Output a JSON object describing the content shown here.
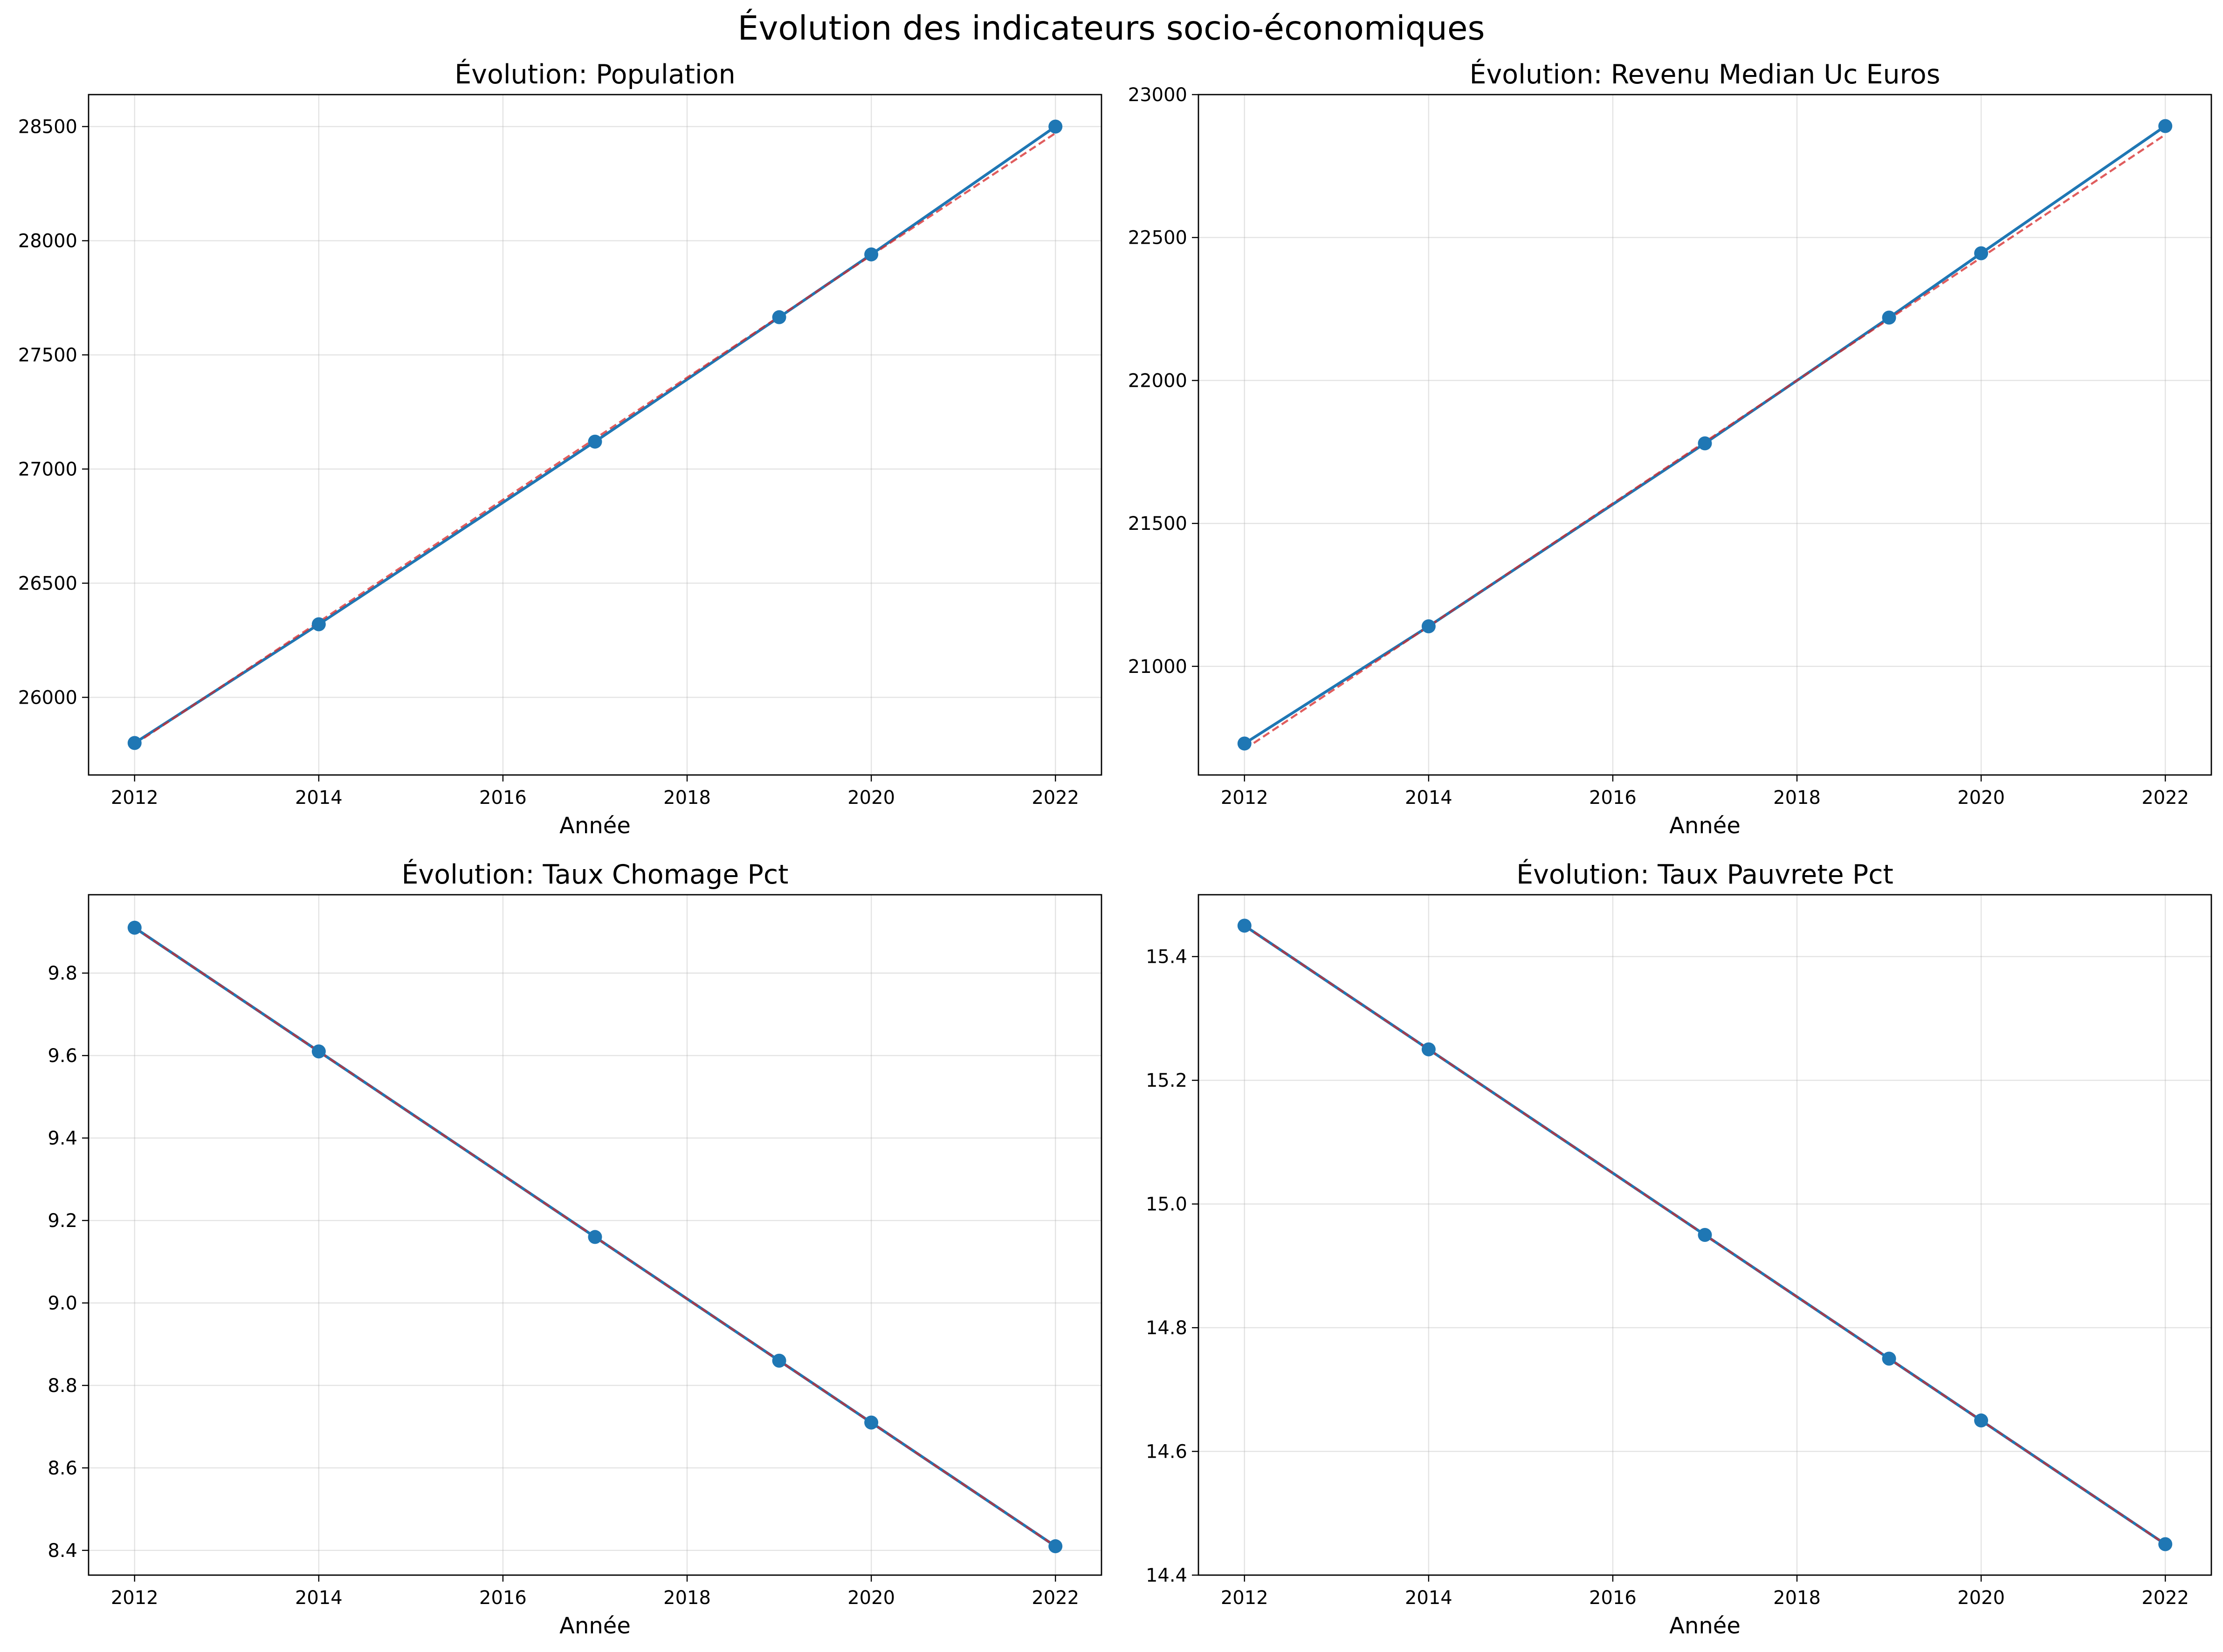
{
  "figure": {
    "title": "Évolution des indicateurs socio-économiques"
  },
  "colors": {
    "series_line": "#1f77b4",
    "trend_line": "#d62728",
    "grid": "#b0b0b0"
  },
  "chart_data": [
    {
      "type": "line",
      "title": "Évolution: Population",
      "xlabel": "Année",
      "ylabel": "",
      "x": [
        2012,
        2014,
        2017,
        2019,
        2020,
        2022
      ],
      "series": [
        {
          "values": [
            25800,
            26320,
            27120,
            27665,
            27940,
            28500
          ]
        },
        {
          "style": "dashed",
          "values": [
            25795,
            26330,
            27133,
            27668,
            27936,
            28471
          ]
        }
      ],
      "xlim": [
        2011.5,
        2022.5
      ],
      "ylim": [
        25660,
        28640
      ],
      "xticks": [
        2012,
        2014,
        2016,
        2018,
        2020,
        2022
      ],
      "yticks": [
        26000,
        26500,
        27000,
        27500,
        28000,
        28500
      ],
      "grid": true
    },
    {
      "type": "line",
      "title": "Évolution: Revenu Median Uc Euros",
      "xlabel": "Année",
      "ylabel": "",
      "x": [
        2012,
        2014,
        2017,
        2019,
        2020,
        2022
      ],
      "series": [
        {
          "values": [
            20730,
            21140,
            21780,
            22220,
            22445,
            22890
          ]
        },
        {
          "style": "dashed",
          "values": [
            20710,
            21140,
            21785,
            22215,
            22430,
            22860
          ]
        }
      ],
      "xlim": [
        2011.5,
        2022.5
      ],
      "ylim": [
        20620,
        23000
      ],
      "xticks": [
        2012,
        2014,
        2016,
        2018,
        2020,
        2022
      ],
      "yticks": [
        21000,
        21500,
        22000,
        22500,
        23000
      ],
      "grid": true
    },
    {
      "type": "line",
      "title": "Évolution: Taux Chomage Pct",
      "xlabel": "Année",
      "ylabel": "",
      "x": [
        2012,
        2014,
        2017,
        2019,
        2020,
        2022
      ],
      "series": [
        {
          "values": [
            9.91,
            9.61,
            9.16,
            8.86,
            8.71,
            8.41
          ]
        },
        {
          "style": "dashed",
          "values": [
            9.91,
            9.61,
            9.16,
            8.86,
            8.71,
            8.41
          ]
        }
      ],
      "xlim": [
        2011.5,
        2022.5
      ],
      "ylim": [
        8.34,
        9.99
      ],
      "xticks": [
        2012,
        2014,
        2016,
        2018,
        2020,
        2022
      ],
      "yticks": [
        8.4,
        8.6,
        8.8,
        9.0,
        9.2,
        9.4,
        9.6,
        9.8
      ],
      "grid": true
    },
    {
      "type": "line",
      "title": "Évolution: Taux Pauvrete Pct",
      "xlabel": "Année",
      "ylabel": "",
      "x": [
        2012,
        2014,
        2017,
        2019,
        2020,
        2022
      ],
      "series": [
        {
          "values": [
            15.45,
            15.25,
            14.95,
            14.75,
            14.65,
            14.45
          ]
        },
        {
          "style": "dashed",
          "values": [
            15.45,
            15.25,
            14.95,
            14.75,
            14.65,
            14.45
          ]
        }
      ],
      "xlim": [
        2011.5,
        2022.5
      ],
      "ylim": [
        14.4,
        15.5
      ],
      "xticks": [
        2012,
        2014,
        2016,
        2018,
        2020,
        2022
      ],
      "yticks": [
        14.4,
        14.6,
        14.8,
        15.0,
        15.2,
        15.4
      ],
      "grid": true
    }
  ]
}
